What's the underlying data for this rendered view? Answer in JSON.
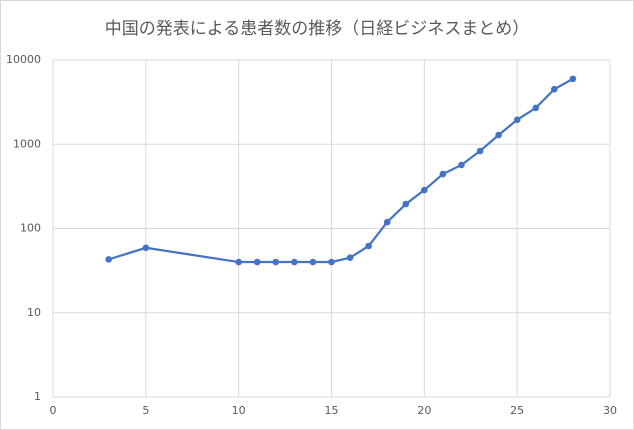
{
  "chart_data": {
    "type": "line",
    "title": "中国の発表による患者数の推移（日経ビジネスまとめ）",
    "x": [
      3,
      5,
      10,
      11,
      12,
      13,
      14,
      15,
      16,
      17,
      18,
      19,
      20,
      21,
      22,
      23,
      24,
      25,
      26,
      27,
      28
    ],
    "series": [
      {
        "color": "#4472c4",
        "values": [
          43,
          59,
          40,
          40,
          40,
          40,
          40,
          40,
          45,
          62,
          119,
          195,
          286,
          443,
          568,
          830,
          1287,
          1950,
          2700,
          4500,
          5970
        ]
      }
    ],
    "xlim": [
      0,
      30
    ],
    "xticks": [
      0,
      5,
      10,
      15,
      20,
      25,
      30
    ],
    "ylim": [
      1,
      10000
    ],
    "yticks": [
      1,
      10,
      100,
      1000,
      10000
    ],
    "ylog": true,
    "grid": true,
    "markers": true
  }
}
